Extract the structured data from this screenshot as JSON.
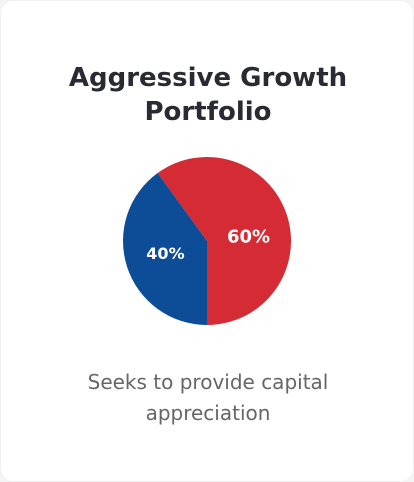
{
  "chart_data": {
    "type": "pie",
    "title": "Aggressive Growth Portfolio",
    "values": [
      60,
      40
    ],
    "value_labels": [
      "60%",
      "40%"
    ],
    "colors": [
      "#d52b35",
      "#0d4d98"
    ],
    "start_angle": -36
  },
  "description": "Seeks to provide capital appreciation"
}
